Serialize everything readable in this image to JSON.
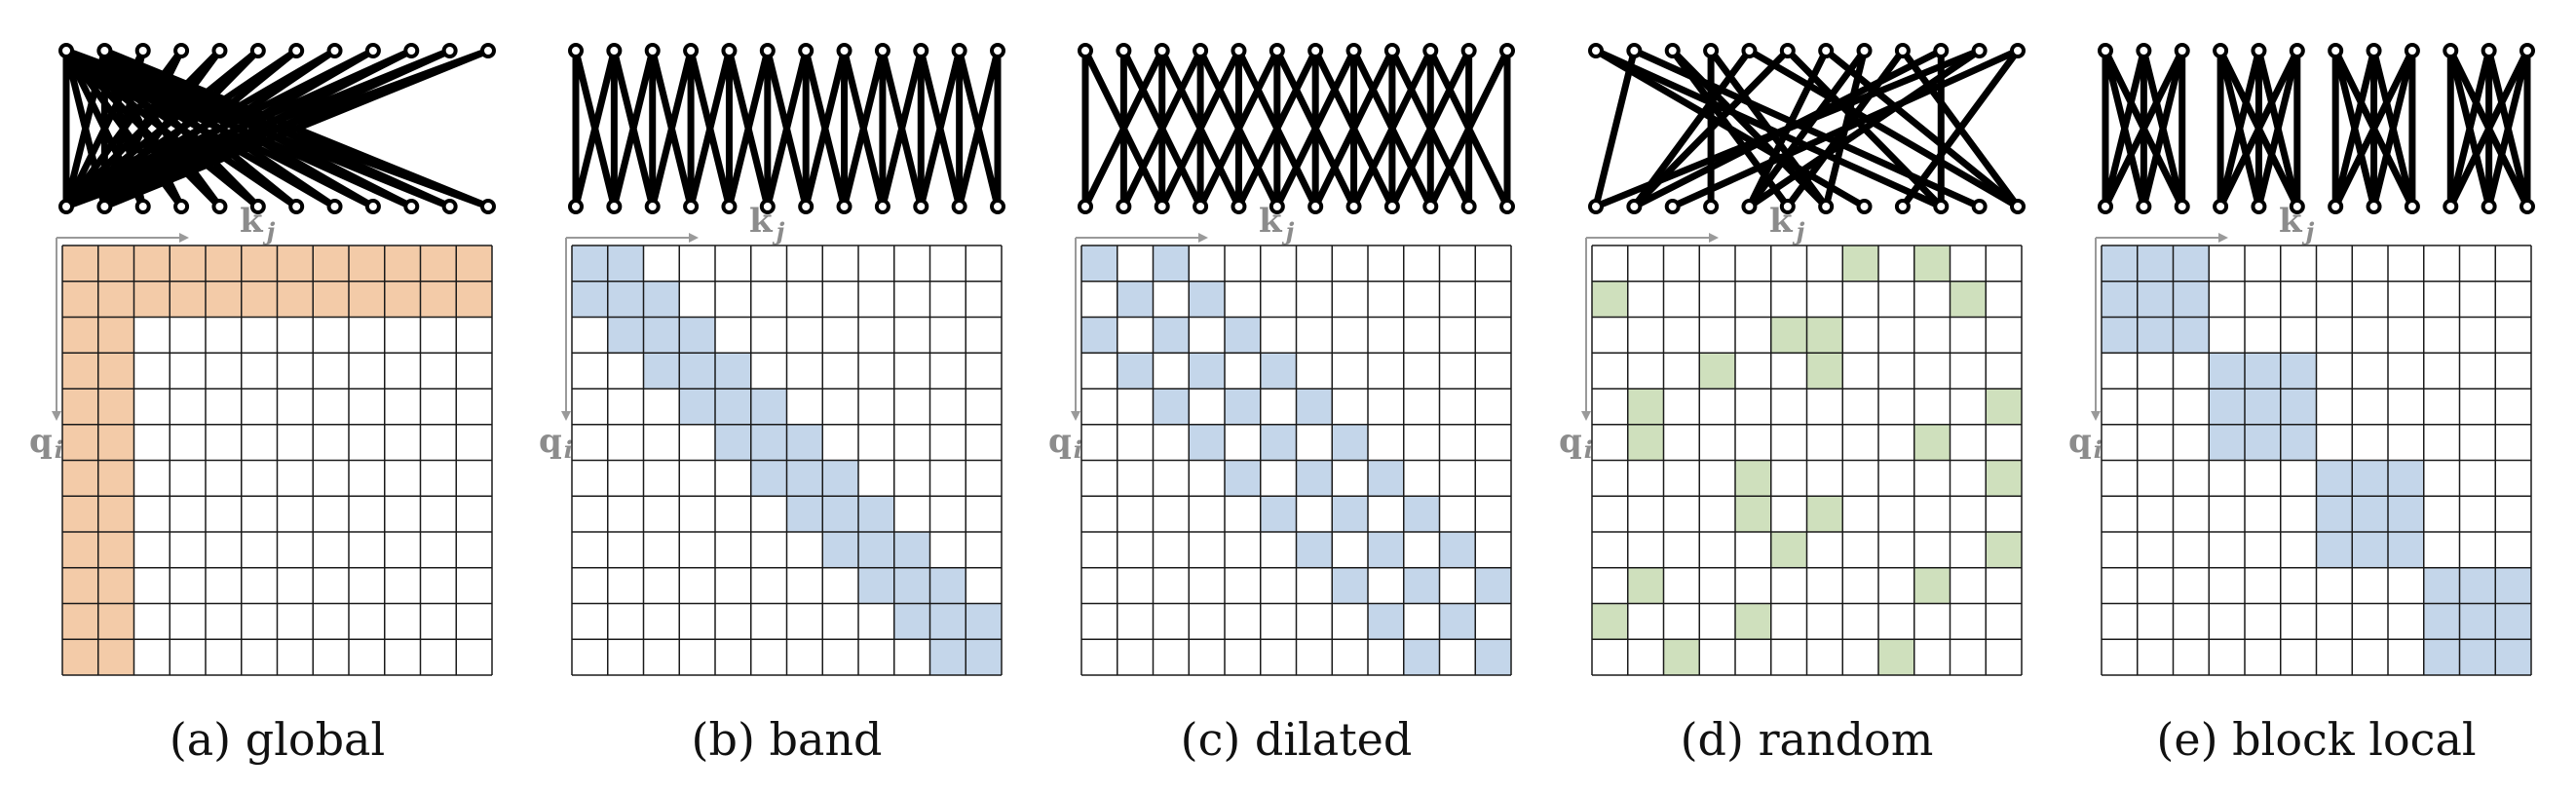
{
  "figure": {
    "grid_size": 12,
    "colors": {
      "global": "#f3cba8",
      "band": "#c4d6ea",
      "dilated": "#c4d6ea",
      "random": "#cfe0bd",
      "block_local": "#c4d6ea",
      "grid_line": "#1a1a1a",
      "axis": "#9a9a9a",
      "graph_edge": "#000000"
    },
    "axis_labels": {
      "key": "k",
      "key_sub": "j",
      "query": "q",
      "query_sub": "i"
    },
    "panels": [
      {
        "id": "global",
        "caption": "(a)  global",
        "pattern": "global",
        "params": {
          "global_rows": 2,
          "global_cols": 2
        }
      },
      {
        "id": "band",
        "caption": "(b)  band",
        "pattern": "band",
        "params": {
          "offsets": [
            -1,
            0,
            1
          ]
        }
      },
      {
        "id": "dilated",
        "caption": "(c)  dilated",
        "pattern": "dilated",
        "params": {
          "offsets": [
            -2,
            0,
            2
          ]
        }
      },
      {
        "id": "random",
        "caption": "(d)  random",
        "pattern": "random",
        "params": {
          "cells": [
            [
              0,
              7
            ],
            [
              0,
              9
            ],
            [
              1,
              0
            ],
            [
              1,
              10
            ],
            [
              2,
              5
            ],
            [
              2,
              6
            ],
            [
              3,
              3
            ],
            [
              3,
              6
            ],
            [
              4,
              1
            ],
            [
              4,
              11
            ],
            [
              5,
              1
            ],
            [
              5,
              9
            ],
            [
              6,
              4
            ],
            [
              6,
              11
            ],
            [
              7,
              4
            ],
            [
              7,
              6
            ],
            [
              8,
              5
            ],
            [
              8,
              11
            ],
            [
              9,
              1
            ],
            [
              9,
              9
            ],
            [
              10,
              0
            ],
            [
              10,
              4
            ],
            [
              11,
              2
            ],
            [
              11,
              8
            ]
          ]
        }
      },
      {
        "id": "block_local",
        "caption": "(e)  block local",
        "pattern": "block",
        "params": {
          "block_size": 3
        }
      }
    ]
  }
}
